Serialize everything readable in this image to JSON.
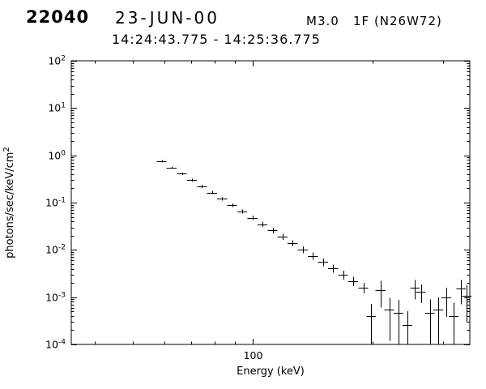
{
  "header": {
    "flare_number": "22040",
    "date": "23-JUN-00",
    "goes_class": "M3.0",
    "flare_info": "1F (N26W72)",
    "time_range": "14:24:43.775 - 14:25:36.775"
  },
  "chart_data": {
    "type": "scatter",
    "title": "",
    "xlabel": "Energy (keV)",
    "ylabel": "photons/sec/keV/cm",
    "ylabel_exponent": "2",
    "xscale": "log",
    "yscale": "log",
    "xlim": [
      35,
      350
    ],
    "ylim": [
      0.0001,
      100.0
    ],
    "grid": false,
    "legend": "none",
    "marker": "cross-with-error-bars",
    "x_major_ticks": [
      100
    ],
    "x_tick_labels": [
      "100"
    ],
    "y_tick_exponents": [
      2,
      1,
      0,
      -1,
      -2,
      -3,
      -4
    ],
    "points": [
      {
        "e": 59.0,
        "ew": 1.7,
        "f": 0.75,
        "ferr": 0.038
      },
      {
        "e": 62.5,
        "ew": 1.8,
        "f": 0.55,
        "ferr": 0.03
      },
      {
        "e": 66.3,
        "ew": 1.9,
        "f": 0.41,
        "ferr": 0.025
      },
      {
        "e": 70.3,
        "ew": 2.0,
        "f": 0.3,
        "ferr": 0.02
      },
      {
        "e": 74.5,
        "ew": 2.1,
        "f": 0.22,
        "ferr": 0.016
      },
      {
        "e": 79.0,
        "ew": 2.3,
        "f": 0.163,
        "ferr": 0.013
      },
      {
        "e": 83.7,
        "ew": 2.4,
        "f": 0.12,
        "ferr": 0.0104
      },
      {
        "e": 88.7,
        "ew": 2.5,
        "f": 0.088,
        "ferr": 0.0083
      },
      {
        "e": 94.0,
        "ew": 2.7,
        "f": 0.065,
        "ferr": 0.0067
      },
      {
        "e": 99.7,
        "ew": 2.9,
        "f": 0.0477,
        "ferr": 0.0053
      },
      {
        "e": 105.7,
        "ew": 3.0,
        "f": 0.035,
        "ferr": 0.0042
      },
      {
        "e": 112.0,
        "ew": 3.2,
        "f": 0.0258,
        "ferr": 0.0033
      },
      {
        "e": 118.7,
        "ew": 3.4,
        "f": 0.019,
        "ferr": 0.0027
      },
      {
        "e": 125.8,
        "ew": 3.6,
        "f": 0.0139,
        "ferr": 0.0021
      },
      {
        "e": 133.4,
        "ew": 3.8,
        "f": 0.0102,
        "ferr": 0.0017
      },
      {
        "e": 141.4,
        "ew": 4.1,
        "f": 0.0075,
        "ferr": 0.0013
      },
      {
        "e": 149.9,
        "ew": 4.3,
        "f": 0.0055,
        "ferr": 0.001
      },
      {
        "e": 158.9,
        "ew": 4.6,
        "f": 0.0041,
        "ferr": 0.0008
      },
      {
        "e": 168.4,
        "ew": 4.8,
        "f": 0.003,
        "ferr": 0.00064
      },
      {
        "e": 178.5,
        "ew": 5.1,
        "f": 0.0022,
        "ferr": 0.0005
      },
      {
        "e": 189.2,
        "ew": 5.4,
        "f": 0.0016,
        "ferr": 0.00039
      },
      {
        "e": 198.0,
        "ew": 5.5,
        "f": 0.0004,
        "ferr": 0.00032
      },
      {
        "e": 209.0,
        "ew": 5.9,
        "f": 0.0014,
        "ferr": 0.0008
      },
      {
        "e": 220.0,
        "ew": 6.2,
        "f": 0.00054,
        "ferr": 0.00042
      },
      {
        "e": 232.0,
        "ew": 6.5,
        "f": 0.00047,
        "ferr": 0.0004
      },
      {
        "e": 244.0,
        "ew": 6.8,
        "f": 0.00026,
        "ferr": 0.00024
      },
      {
        "e": 255.0,
        "ew": 7.1,
        "f": 0.0016,
        "ferr": 0.0007
      },
      {
        "e": 264.0,
        "ew": 7.4,
        "f": 0.0013,
        "ferr": 0.00055
      },
      {
        "e": 278.0,
        "ew": 7.8,
        "f": 0.00047,
        "ferr": 0.00043
      },
      {
        "e": 292.0,
        "ew": 8.2,
        "f": 0.00054,
        "ferr": 0.00045
      },
      {
        "e": 306.0,
        "ew": 8.6,
        "f": 0.00098,
        "ferr": 0.0006
      },
      {
        "e": 319.0,
        "ew": 8.9,
        "f": 0.0004,
        "ferr": 0.00036
      },
      {
        "e": 333.0,
        "ew": 9.3,
        "f": 0.0015,
        "ferr": 0.0008
      },
      {
        "e": 344.0,
        "ew": 9.6,
        "f": 0.00105,
        "ferr": 0.00075
      }
    ]
  }
}
